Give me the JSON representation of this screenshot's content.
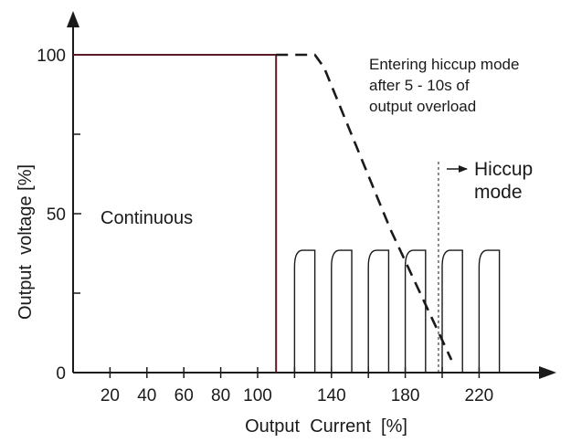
{
  "chart_data": {
    "type": "line",
    "xlabel": "Output  Current  [%]",
    "ylabel": "Output  voltage [%]",
    "xlim": [
      0,
      240
    ],
    "ylim": [
      0,
      105
    ],
    "x_ticks": [
      20,
      40,
      60,
      80,
      100,
      140,
      180,
      220
    ],
    "x_tick_labels": [
      "20",
      "40",
      "60",
      "80",
      "100",
      "140",
      "180",
      "220"
    ],
    "x_minor_ticks": [
      120,
      160,
      200
    ],
    "y_ticks": [
      0,
      50,
      100
    ],
    "y_tick_labels": [
      "0",
      "50",
      "100"
    ],
    "y_minor_ticks": [
      25,
      75
    ],
    "series": [
      {
        "style": "solid",
        "color": "#5a1a28",
        "x": [
          0,
          110,
          110
        ],
        "y": [
          100,
          100,
          0
        ]
      },
      {
        "style": "dashed",
        "color": "#1a1a1a",
        "x": [
          110,
          131,
          136,
          172,
          205
        ],
        "y": [
          100,
          100,
          96,
          45,
          4
        ]
      }
    ],
    "hiccup_pulses": {
      "height": 38.5,
      "color": "#1a1a1a",
      "x_ranges": [
        [
          120,
          131
        ],
        [
          140,
          151
        ],
        [
          160,
          171
        ],
        [
          180,
          191
        ],
        [
          200,
          211
        ],
        [
          220,
          231
        ]
      ]
    },
    "marker_line": {
      "x": 198,
      "y_range": [
        0,
        67
      ]
    },
    "annotations": {
      "continuous": "Continuous",
      "entering": [
        "Entering hiccup mode",
        "after 5 - 10s of",
        "output overload"
      ],
      "hiccup": [
        "Hiccup",
        "mode"
      ]
    }
  }
}
